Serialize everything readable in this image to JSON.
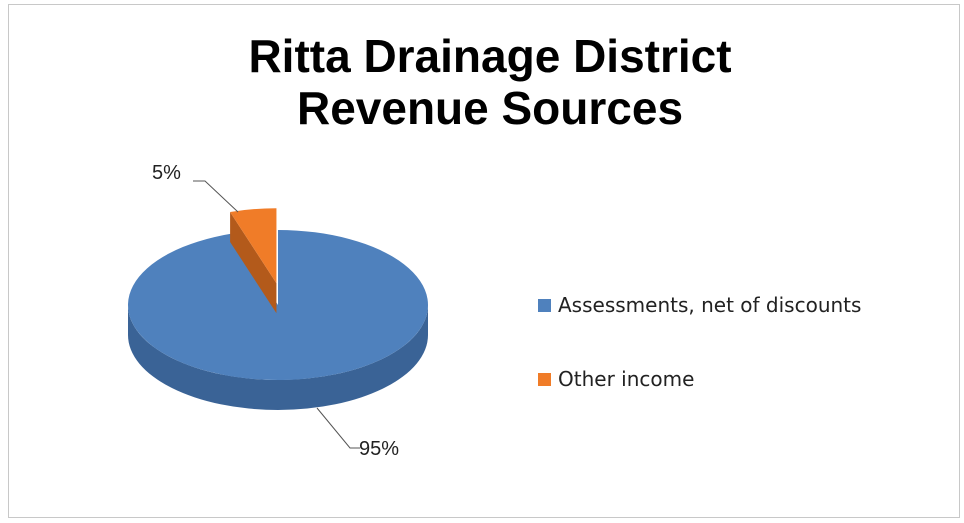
{
  "chart_data": {
    "type": "pie",
    "title": [
      "Ritta Drainage District",
      "Revenue Sources"
    ],
    "series": [
      {
        "name": "Assessments, net of discounts",
        "value": 95,
        "label": "95%",
        "color": "#4f81bd",
        "side_color": "#3a6396",
        "exploded": false
      },
      {
        "name": "Other income",
        "value": 5,
        "label": "5%",
        "color": "#f07c28",
        "side_color": "#b35a1b",
        "exploded": true
      }
    ],
    "legend_position": "right",
    "style": "3d"
  }
}
